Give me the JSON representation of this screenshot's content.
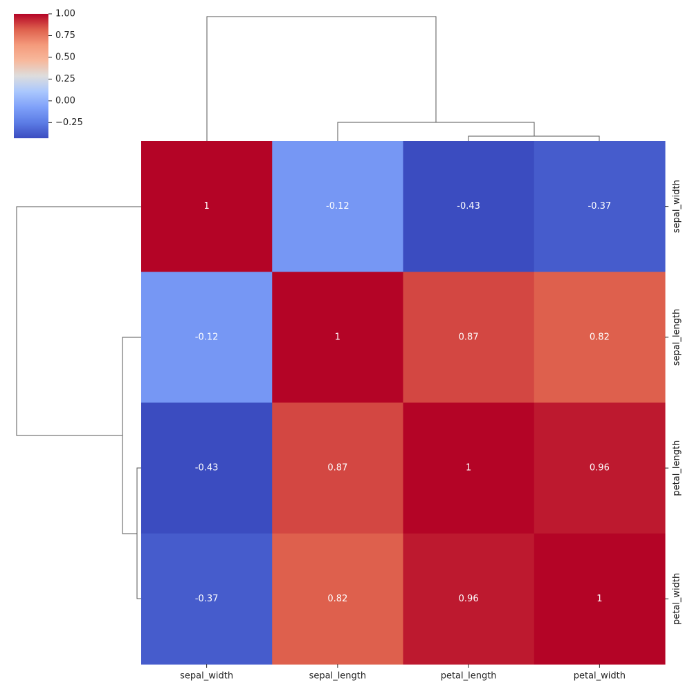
{
  "chart_data": {
    "type": "heatmap",
    "rows": [
      "sepal_width",
      "sepal_length",
      "petal_length",
      "petal_width"
    ],
    "columns": [
      "sepal_width",
      "sepal_length",
      "petal_length",
      "petal_width"
    ],
    "values": [
      [
        1,
        -0.12,
        -0.43,
        -0.37
      ],
      [
        -0.12,
        1,
        0.87,
        0.82
      ],
      [
        -0.43,
        0.87,
        1,
        0.96
      ],
      [
        -0.37,
        0.82,
        0.96,
        1
      ]
    ],
    "colormap": [
      "#3b4cc0",
      "#5c7ce5",
      "#7fa1f9",
      "#aac7fd",
      "#dddddd",
      "#f7b89c",
      "#f49a7b",
      "#de604d",
      "#b40426"
    ],
    "clim": [
      -0.43,
      1
    ],
    "cticks": [
      {
        "value": 1,
        "label": "1.00"
      },
      {
        "value": 0.75,
        "label": "0.75"
      },
      {
        "value": 0.5,
        "label": "0.50"
      },
      {
        "value": 0.25,
        "label": "0.25"
      },
      {
        "value": 0,
        "label": "0.00"
      },
      {
        "value": -0.25,
        "label": "−0.25"
      }
    ],
    "annotation_color": "#ffffff"
  }
}
